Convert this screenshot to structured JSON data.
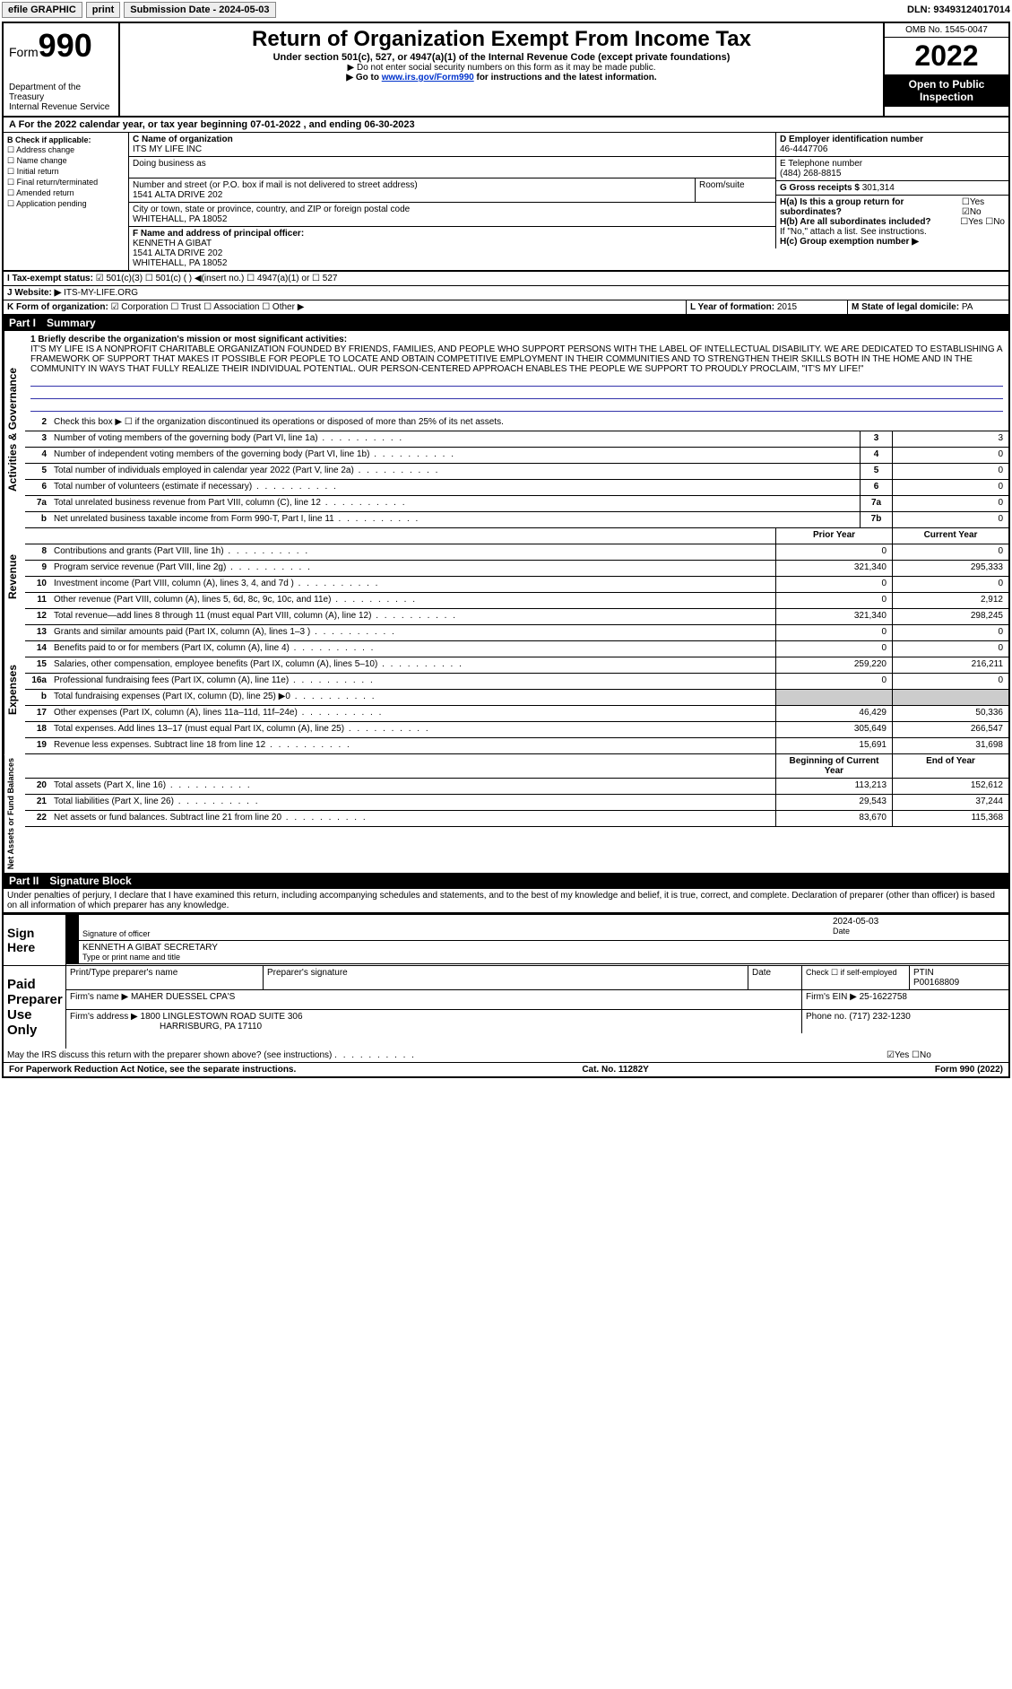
{
  "topbar": {
    "efile": "efile GRAPHIC",
    "print": "print",
    "subdate_label": "Submission Date - 2024-05-03",
    "dln": "DLN: 93493124017014"
  },
  "header": {
    "form_prefix": "Form",
    "form_no": "990",
    "dept": "Department of the Treasury",
    "irs": "Internal Revenue Service",
    "title": "Return of Organization Exempt From Income Tax",
    "sub": "Under section 501(c), 527, or 4947(a)(1) of the Internal Revenue Code (except private foundations)",
    "note1": "▶ Do not enter social security numbers on this form as it may be made public.",
    "note2_pre": "▶ Go to ",
    "note2_link": "www.irs.gov/Form990",
    "note2_post": " for instructions and the latest information.",
    "omb": "OMB No. 1545-0047",
    "year": "2022",
    "open": "Open to Public Inspection"
  },
  "taxyear": "A For the 2022 calendar year, or tax year beginning 07-01-2022   , and ending 06-30-2023",
  "checkcol": {
    "label": "B Check if applicable:",
    "items": [
      "☐ Address change",
      "☐ Name change",
      "☐ Initial return",
      "☐ Final return/terminated",
      "☐ Amended return",
      "☐ Application pending"
    ]
  },
  "entity": {
    "c_label": "C Name of organization",
    "name": "ITS MY LIFE INC",
    "dba_label": "Doing business as",
    "addr_label": "Number and street (or P.O. box if mail is not delivered to street address)",
    "room_label": "Room/suite",
    "addr": "1541 ALTA DRIVE 202",
    "city_label": "City or town, state or province, country, and ZIP or foreign postal code",
    "city": "WHITEHALL, PA  18052",
    "f_label": "F  Name and address of principal officer:",
    "officer": "KENNETH A GIBAT",
    "officer_addr1": "1541 ALTA DRIVE 202",
    "officer_addr2": "WHITEHALL, PA  18052"
  },
  "right": {
    "d_label": "D Employer identification number",
    "ein": "46-4447706",
    "e_label": "E Telephone number",
    "phone": "(484) 268-8815",
    "g_label": "G Gross receipts $",
    "gross": "301,314",
    "ha_label": "H(a)  Is this a group return for subordinates?",
    "ha_val": "☐Yes ☑No",
    "hb_label": "H(b)  Are all subordinates included?",
    "hb_val": "☐Yes ☐No",
    "hb_note": "If \"No,\" attach a list. See instructions.",
    "hc_label": "H(c)  Group exemption number ▶"
  },
  "status": {
    "i_label": "I   Tax-exempt status:",
    "opts": "☑ 501(c)(3)   ☐ 501(c) (  ) ◀(insert no.)    ☐ 4947(a)(1) or   ☐ 527",
    "j_label": "J   Website: ▶",
    "website": "ITS-MY-LIFE.ORG",
    "k_label": "K Form of organization:",
    "k_opts": "☑ Corporation  ☐ Trust  ☐ Association  ☐ Other ▶",
    "l_label": "L Year of formation: ",
    "l_val": "2015",
    "m_label": "M State of legal domicile: ",
    "m_val": "PA"
  },
  "part1": {
    "label": "Part I",
    "title": "Summary"
  },
  "mission": {
    "label": "1   Briefly describe the organization's mission or most significant activities:",
    "text": "IT'S MY LIFE IS A NONPROFIT CHARITABLE ORGANIZATION FOUNDED BY FRIENDS, FAMILIES, AND PEOPLE WHO SUPPORT PERSONS WITH THE LABEL OF INTELLECTUAL DISABILITY. WE ARE DEDICATED TO ESTABLISHING A FRAMEWORK OF SUPPORT THAT MAKES IT POSSIBLE FOR PEOPLE TO LOCATE AND OBTAIN COMPETITIVE EMPLOYMENT IN THEIR COMMUNITIES AND TO STRENGTHEN THEIR SKILLS BOTH IN THE HOME AND IN THE COMMUNITY IN WAYS THAT FULLY REALIZE THEIR INDIVIDUAL POTENTIAL. OUR PERSON-CENTERED APPROACH ENABLES THE PEOPLE WE SUPPORT TO PROUDLY PROCLAIM, \"IT'S MY LIFE!\""
  },
  "gov_lines": [
    {
      "n": "2",
      "d": "Check this box ▶ ☐ if the organization discontinued its operations or disposed of more than 25% of its net assets."
    },
    {
      "n": "3",
      "d": "Number of voting members of the governing body (Part VI, line 1a)",
      "box": "3",
      "v": "3"
    },
    {
      "n": "4",
      "d": "Number of independent voting members of the governing body (Part VI, line 1b)",
      "box": "4",
      "v": "0"
    },
    {
      "n": "5",
      "d": "Total number of individuals employed in calendar year 2022 (Part V, line 2a)",
      "box": "5",
      "v": "0"
    },
    {
      "n": "6",
      "d": "Total number of volunteers (estimate if necessary)",
      "box": "6",
      "v": "0"
    },
    {
      "n": "7a",
      "d": "Total unrelated business revenue from Part VIII, column (C), line 12",
      "box": "7a",
      "v": "0"
    },
    {
      "n": "b",
      "d": "Net unrelated business taxable income from Form 990-T, Part I, line 11",
      "box": "7b",
      "v": "0"
    }
  ],
  "twocol_hdr": {
    "prior": "Prior Year",
    "current": "Current Year"
  },
  "rev_lines": [
    {
      "n": "8",
      "d": "Contributions and grants (Part VIII, line 1h)",
      "p": "0",
      "c": "0"
    },
    {
      "n": "9",
      "d": "Program service revenue (Part VIII, line 2g)",
      "p": "321,340",
      "c": "295,333"
    },
    {
      "n": "10",
      "d": "Investment income (Part VIII, column (A), lines 3, 4, and 7d )",
      "p": "0",
      "c": "0"
    },
    {
      "n": "11",
      "d": "Other revenue (Part VIII, column (A), lines 5, 6d, 8c, 9c, 10c, and 11e)",
      "p": "0",
      "c": "2,912"
    },
    {
      "n": "12",
      "d": "Total revenue—add lines 8 through 11 (must equal Part VIII, column (A), line 12)",
      "p": "321,340",
      "c": "298,245"
    }
  ],
  "exp_lines": [
    {
      "n": "13",
      "d": "Grants and similar amounts paid (Part IX, column (A), lines 1–3 )",
      "p": "0",
      "c": "0"
    },
    {
      "n": "14",
      "d": "Benefits paid to or for members (Part IX, column (A), line 4)",
      "p": "0",
      "c": "0"
    },
    {
      "n": "15",
      "d": "Salaries, other compensation, employee benefits (Part IX, column (A), lines 5–10)",
      "p": "259,220",
      "c": "216,211"
    },
    {
      "n": "16a",
      "d": "Professional fundraising fees (Part IX, column (A), line 11e)",
      "p": "0",
      "c": "0"
    },
    {
      "n": "b",
      "d": "Total fundraising expenses (Part IX, column (D), line 25) ▶0",
      "p": "",
      "c": "",
      "shade": true
    },
    {
      "n": "17",
      "d": "Other expenses (Part IX, column (A), lines 11a–11d, 11f–24e)",
      "p": "46,429",
      "c": "50,336"
    },
    {
      "n": "18",
      "d": "Total expenses. Add lines 13–17 (must equal Part IX, column (A), line 25)",
      "p": "305,649",
      "c": "266,547"
    },
    {
      "n": "19",
      "d": "Revenue less expenses. Subtract line 18 from line 12",
      "p": "15,691",
      "c": "31,698"
    }
  ],
  "na_hdr": {
    "begin": "Beginning of Current Year",
    "end": "End of Year"
  },
  "na_lines": [
    {
      "n": "20",
      "d": "Total assets (Part X, line 16)",
      "p": "113,213",
      "c": "152,612"
    },
    {
      "n": "21",
      "d": "Total liabilities (Part X, line 26)",
      "p": "29,543",
      "c": "37,244"
    },
    {
      "n": "22",
      "d": "Net assets or fund balances. Subtract line 21 from line 20",
      "p": "83,670",
      "c": "115,368"
    }
  ],
  "vtabs": {
    "gov": "Activities & Governance",
    "rev": "Revenue",
    "exp": "Expenses",
    "na": "Net Assets or Fund Balances"
  },
  "part2": {
    "label": "Part II",
    "title": "Signature Block"
  },
  "perjury": "Under penalties of perjury, I declare that I have examined this return, including accompanying schedules and statements, and to the best of my knowledge and belief, it is true, correct, and complete. Declaration of preparer (other than officer) is based on all information of which preparer has any knowledge.",
  "sign": {
    "here": "Sign Here",
    "sig_label": "Signature of officer",
    "date_label": "Date",
    "date": "2024-05-03",
    "name": "KENNETH A GIBAT  SECRETARY",
    "name_label": "Type or print name and title"
  },
  "paid": {
    "label": "Paid Preparer Use Only",
    "h1": "Print/Type preparer's name",
    "h2": "Preparer's signature",
    "h3": "Date",
    "h4_pre": "Check ☐ if self-employed",
    "h5": "PTIN",
    "ptin": "P00168809",
    "firm_label": "Firm's name    ▶",
    "firm": "MAHER DUESSEL CPA'S",
    "ein_label": "Firm's EIN ▶",
    "ein": "25-1622758",
    "addr_label": "Firm's address ▶",
    "addr1": "1800 LINGLESTOWN ROAD SUITE 306",
    "addr2": "HARRISBURG, PA  17110",
    "phone_label": "Phone no.",
    "phone": "(717) 232-1230"
  },
  "discuss": {
    "q": "May the IRS discuss this return with the preparer shown above? (see instructions)",
    "a": "☑Yes  ☐No"
  },
  "footer": {
    "left": "For Paperwork Reduction Act Notice, see the separate instructions.",
    "mid": "Cat. No. 11282Y",
    "right": "Form 990 (2022)"
  }
}
